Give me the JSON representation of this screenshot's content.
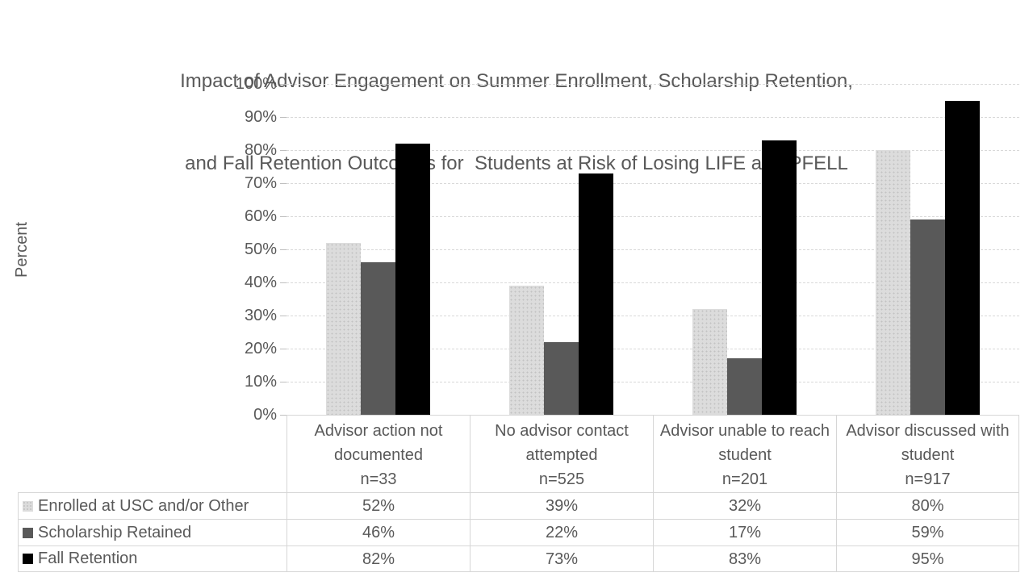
{
  "title": {
    "line1": "Impact of Advisor Engagement on Summer Enrollment, Scholarship Retention,",
    "line2": "and Fall Retention Outcomes for  Students at Risk of Losing LIFE and PFELL"
  },
  "chart_data": {
    "type": "bar",
    "title": "Impact of Advisor Engagement on Summer Enrollment, Scholarship Retention, and Fall Retention Outcomes for  Students at Risk of Losing LIFE and PFELL",
    "title_lines": [
      "Impact of Advisor Engagement on Summer Enrollment, Scholarship Retention,",
      "and Fall Retention Outcomes for  Students at Risk of Losing LIFE and PFELL"
    ],
    "xlabel": "",
    "ylabel": "Percent",
    "ylim": [
      0,
      100
    ],
    "y_tick_step": 10,
    "y_ticks": [
      "0%",
      "10%",
      "20%",
      "30%",
      "40%",
      "50%",
      "60%",
      "70%",
      "80%",
      "90%",
      "100%"
    ],
    "grid": true,
    "legend_position": "table-left",
    "categories": [
      "Advisor action not documented",
      "No advisor contact attempted",
      "Advisor unable to reach student",
      "Advisor discussed with student"
    ],
    "category_ns": [
      "n=33",
      "n=525",
      "n=201",
      "n=917"
    ],
    "series": [
      {
        "name": "Enrolled at USC and/or Other",
        "color": "#dcdcdc",
        "pattern": "dots",
        "values": [
          52,
          39,
          32,
          80
        ],
        "labels": [
          "52%",
          "39%",
          "32%",
          "80%"
        ]
      },
      {
        "name": "Scholarship Retained",
        "color": "#595959",
        "pattern": "solid",
        "values": [
          46,
          22,
          17,
          59
        ],
        "labels": [
          "46%",
          "22%",
          "17%",
          "59%"
        ]
      },
      {
        "name": "Fall Retention",
        "color": "#000000",
        "pattern": "solid",
        "values": [
          82,
          73,
          83,
          95
        ],
        "labels": [
          "82%",
          "73%",
          "83%",
          "95%"
        ]
      }
    ]
  }
}
